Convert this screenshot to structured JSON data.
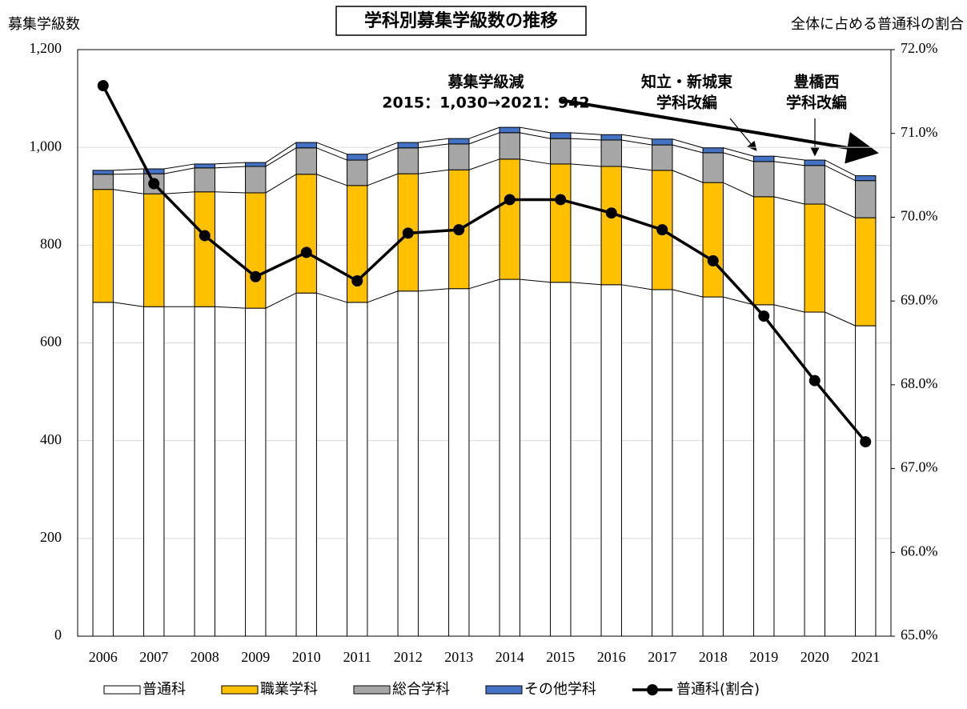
{
  "chart_data": {
    "type": "bar",
    "stacked": true,
    "title": "学科別募集学級数の推移",
    "y_label": "募集学級数",
    "y2_label": "全体に占める普通科の割合",
    "categories": [
      "2006",
      "2007",
      "2008",
      "2009",
      "2010",
      "2011",
      "2012",
      "2013",
      "2014",
      "2015",
      "2016",
      "2017",
      "2018",
      "2019",
      "2020",
      "2021"
    ],
    "series": [
      {
        "name": "普通科",
        "color": "#ffffff",
        "values": [
          683,
          674,
          674,
          671,
          702,
          683,
          706,
          711,
          730,
          724,
          719,
          709,
          694,
          678,
          663,
          635
        ]
      },
      {
        "name": "職業学科",
        "color": "#ffc000",
        "values": [
          231,
          231,
          235,
          236,
          243,
          239,
          240,
          243,
          246,
          242,
          242,
          244,
          234,
          221,
          221,
          221
        ]
      },
      {
        "name": "総合学科",
        "color": "#a6a6a6",
        "values": [
          31,
          41,
          49,
          54,
          54,
          52,
          53,
          53,
          54,
          52,
          54,
          52,
          61,
          72,
          79,
          76
        ]
      },
      {
        "name": "その他学科",
        "color": "#4472c4",
        "values": [
          8,
          10,
          8,
          8,
          11,
          12,
          11,
          11,
          11,
          12,
          11,
          12,
          10,
          11,
          11,
          10
        ]
      },
      {
        "name": "普通科(割合)",
        "type": "line",
        "axis": "y2",
        "color": "#000000",
        "values": [
          71.57,
          70.4,
          69.78,
          69.29,
          69.58,
          69.24,
          69.81,
          69.85,
          70.21,
          70.21,
          70.05,
          69.85,
          69.48,
          68.82,
          68.05,
          67.32
        ]
      }
    ],
    "ylim": [
      0,
      1200
    ],
    "yticks": [
      0,
      200,
      400,
      600,
      800,
      {
        "value": 1000,
        "label": "1,000"
      },
      {
        "value": 1200,
        "label": "1,200"
      }
    ],
    "y2lim": [
      65,
      72
    ],
    "y2ticks": [
      {
        "value": 65,
        "label": "65.0%"
      },
      {
        "value": 66,
        "label": "66.0%"
      },
      {
        "value": 67,
        "label": "67.0%"
      },
      {
        "value": 68,
        "label": "68.0%"
      },
      {
        "value": 69,
        "label": "69.0%"
      },
      {
        "value": 70,
        "label": "70.0%"
      },
      {
        "value": 71,
        "label": "71.0%"
      },
      {
        "value": 72,
        "label": "72.0%"
      }
    ],
    "grid": true,
    "legend": "bottom",
    "annotations": [
      {
        "lines": [
          "募集学級減",
          "2015：1,030→2021：942"
        ]
      },
      {
        "lines": [
          "知立・新城東",
          "学科改編"
        ]
      },
      {
        "lines": [
          "豊橋西",
          "学科改編"
        ]
      }
    ]
  }
}
